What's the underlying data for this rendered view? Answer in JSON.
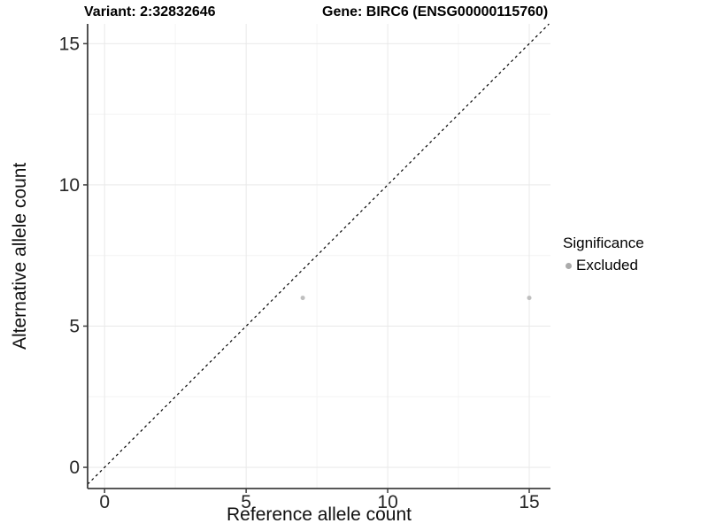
{
  "page": {
    "background": "#ffffff"
  },
  "chart_data": {
    "type": "scatter",
    "titles": {
      "left": "Variant: 2:32832646",
      "right": "Gene: BIRC6 (ENSG00000115760)"
    },
    "xlabel": "Reference allele count",
    "ylabel": "Alternative allele count",
    "xlim": [
      -0.6,
      15.75
    ],
    "ylim": [
      -0.75,
      15.7
    ],
    "x_ticks": [
      0,
      5,
      10,
      15
    ],
    "y_ticks": [
      0,
      5,
      10,
      15
    ],
    "x_minor_ticks": [
      2.5,
      7.5,
      12.5
    ],
    "y_minor_ticks": [
      2.5,
      7.5,
      12.5
    ],
    "grid": {
      "major": true,
      "minor": true
    },
    "identity_line": {
      "style": "dashed",
      "equation": "y = x",
      "from": [
        -0.6,
        -0.6
      ],
      "to": [
        15.7,
        15.7
      ],
      "color": "#000000"
    },
    "series": [
      {
        "name": "Excluded",
        "color": "#bfbfbf",
        "point_radius": 2.5,
        "points": [
          [
            7,
            6
          ],
          [
            15,
            6
          ]
        ]
      }
    ],
    "legend": {
      "title": "Significance",
      "position": "right",
      "entries": [
        {
          "label": "Excluded",
          "color": "#ababab"
        }
      ]
    },
    "colors": {
      "axis_line": "#3f3f3f",
      "tick_label": "#262626",
      "grid_major": "#e9e9e9",
      "grid_minor": "#f4f4f4",
      "title": "#000000"
    }
  }
}
